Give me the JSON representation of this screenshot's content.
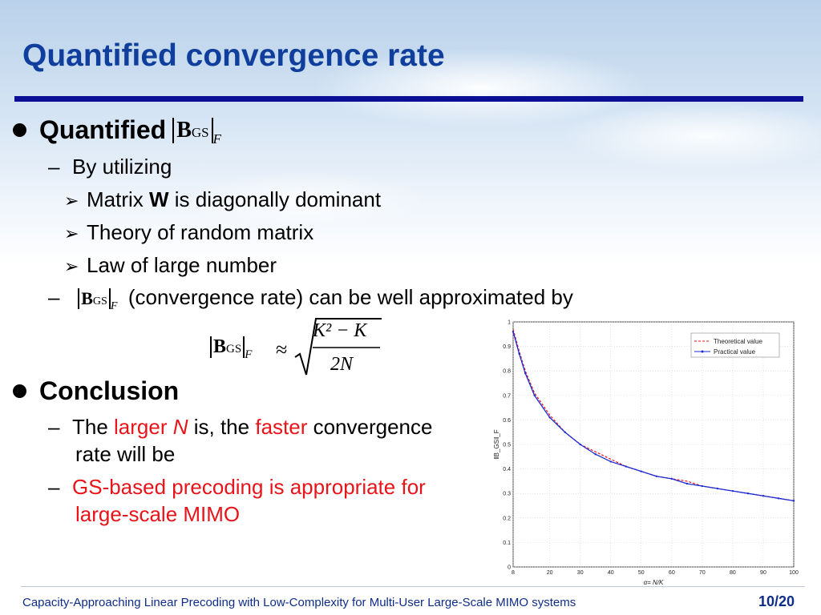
{
  "slide": {
    "title": "Quantified convergence rate",
    "section1": {
      "heading": "Quantified",
      "by_utilizing": "By utilizing",
      "items": [
        {
          "pre": "Matrix ",
          "bold": "W",
          "post": " is diagonally dominant"
        },
        {
          "text": "Theory of random matrix"
        },
        {
          "text": "Law of large number"
        }
      ],
      "approx_text": "(convergence rate) can be well approximated by"
    },
    "math": {
      "norm_symbol": "B",
      "norm_sub": "GS",
      "norm_F": "F",
      "approx_sign": "≈",
      "numerator": "K² − K",
      "denominator": "2N"
    },
    "section2": {
      "heading": "Conclusion",
      "line1_parts": [
        "The ",
        "larger ",
        "N",
        " is, the ",
        "faster",
        " convergence"
      ],
      "line2": "rate will be",
      "line3": "GS-based precoding is appropriate for",
      "line4": "large-scale MIMO"
    },
    "footer": {
      "text": "Capacity-Approaching Linear Precoding with Low-Complexity for Multi-User Large-Scale MIMO systems",
      "page": "10/20"
    }
  },
  "chart_data": {
    "type": "line",
    "title": "",
    "xlabel": "α= N/K",
    "ylabel": "‖B_GS‖_F",
    "xlim": [
      8,
      100
    ],
    "ylim": [
      0,
      1
    ],
    "xticks": [
      8,
      20,
      30,
      40,
      50,
      60,
      70,
      80,
      90,
      100
    ],
    "yticks": [
      0,
      0.1,
      0.2,
      0.3,
      0.4,
      0.5,
      0.6,
      0.7,
      0.8,
      0.9,
      1
    ],
    "grid": true,
    "legend_position": "top-right",
    "series": [
      {
        "name": "Theoretical value",
        "color": "#e8141a",
        "style": "dashed",
        "x": [
          8,
          10,
          12,
          15,
          20,
          25,
          30,
          35,
          40,
          45,
          50,
          55,
          60,
          65,
          70,
          75,
          80,
          85,
          90,
          95,
          100
        ],
        "y": [
          0.97,
          0.88,
          0.8,
          0.71,
          0.62,
          0.55,
          0.5,
          0.47,
          0.44,
          0.41,
          0.39,
          0.37,
          0.36,
          0.35,
          0.33,
          0.32,
          0.31,
          0.3,
          0.29,
          0.28,
          0.27
        ]
      },
      {
        "name": "Practical value",
        "color": "#1a2bd6",
        "style": "solid-marker",
        "x": [
          8,
          10,
          12,
          15,
          20,
          25,
          30,
          35,
          40,
          45,
          50,
          55,
          60,
          65,
          70,
          75,
          80,
          85,
          90,
          95,
          100
        ],
        "y": [
          0.96,
          0.87,
          0.79,
          0.7,
          0.61,
          0.55,
          0.5,
          0.46,
          0.43,
          0.41,
          0.39,
          0.37,
          0.36,
          0.34,
          0.33,
          0.32,
          0.31,
          0.3,
          0.29,
          0.28,
          0.27
        ]
      }
    ]
  }
}
